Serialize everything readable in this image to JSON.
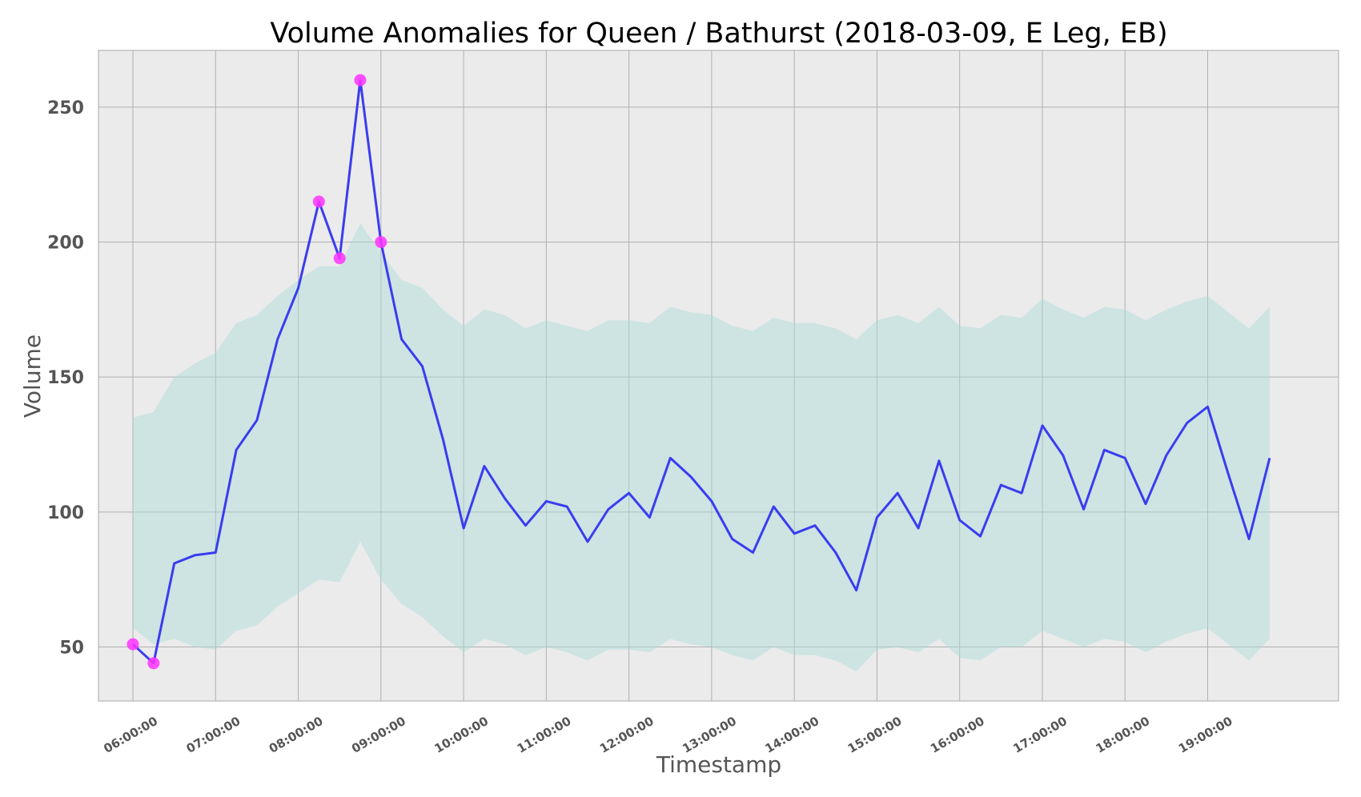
{
  "chart_data": {
    "type": "line",
    "title": "Volume Anomalies for Queen / Bathurst (2018-03-09, E Leg, EB)",
    "xlabel": "Timestamp",
    "ylabel": "Volume",
    "x_ticks": [
      "06:00:00",
      "07:00:00",
      "08:00:00",
      "09:00:00",
      "10:00:00",
      "11:00:00",
      "12:00:00",
      "13:00:00",
      "14:00:00",
      "15:00:00",
      "16:00:00",
      "17:00:00",
      "18:00:00",
      "19:00:00"
    ],
    "y_ticks": [
      "50",
      "100",
      "150",
      "200",
      "250"
    ],
    "x_range": [
      "05:35:00",
      "20:35:00"
    ],
    "ylim": [
      30,
      271
    ],
    "grid": true,
    "x": [
      "06:00",
      "06:15",
      "06:30",
      "06:45",
      "07:00",
      "07:15",
      "07:30",
      "07:45",
      "08:00",
      "08:15",
      "08:30",
      "08:45",
      "09:00",
      "09:15",
      "09:30",
      "09:45",
      "10:00",
      "10:15",
      "10:30",
      "10:45",
      "11:00",
      "11:15",
      "11:30",
      "11:45",
      "12:00",
      "12:15",
      "12:30",
      "12:45",
      "13:00",
      "13:15",
      "13:30",
      "13:45",
      "14:00",
      "14:15",
      "14:30",
      "14:45",
      "15:00",
      "15:15",
      "15:30",
      "15:45",
      "16:00",
      "16:15",
      "16:30",
      "16:45",
      "17:00",
      "17:15",
      "17:30",
      "17:45",
      "18:00",
      "18:15",
      "18:30",
      "18:45",
      "19:00",
      "19:15",
      "19:30",
      "19:45"
    ],
    "series": [
      {
        "values": [
          51,
          44,
          81,
          84,
          85,
          123,
          134,
          164,
          183,
          215,
          194,
          260,
          200,
          164,
          154,
          127,
          94,
          117,
          105,
          95,
          104,
          102,
          89,
          101,
          107,
          98,
          120,
          113,
          104,
          90,
          85,
          102,
          92,
          95,
          85,
          71,
          98,
          107,
          94,
          119,
          97,
          91,
          110,
          107,
          132,
          121,
          101,
          123,
          120,
          103,
          121,
          133,
          139,
          114,
          90,
          120
        ],
        "color": "#3a3cf0"
      }
    ],
    "band": {
      "upper": [
        135,
        137,
        150,
        155,
        159,
        170,
        173,
        180,
        186,
        191,
        191,
        207,
        196,
        186,
        183,
        175,
        169,
        175,
        173,
        168,
        171,
        169,
        167,
        171,
        171,
        170,
        176,
        174,
        173,
        169,
        167,
        172,
        170,
        170,
        168,
        164,
        171,
        173,
        170,
        176,
        169,
        168,
        173,
        172,
        179,
        175,
        172,
        176,
        175,
        171,
        175,
        178,
        180,
        174,
        168,
        176
      ],
      "lower": [
        57,
        51,
        53,
        50,
        49,
        56,
        58,
        65,
        70,
        75,
        74,
        89,
        75,
        66,
        61,
        54,
        48,
        53,
        51,
        47,
        50,
        48,
        45,
        49,
        49,
        48,
        53,
        51,
        50,
        47,
        45,
        50,
        47,
        47,
        45,
        41,
        49,
        50,
        48,
        53,
        46,
        45,
        50,
        50,
        56,
        53,
        50,
        53,
        52,
        48,
        52,
        55,
        57,
        51,
        45,
        53
      ],
      "color": "#a8dcd6"
    },
    "anomalies": {
      "x": [
        "06:00",
        "06:15",
        "08:15",
        "08:30",
        "08:45",
        "09:00"
      ],
      "values": [
        51,
        44,
        215,
        194,
        260,
        200
      ],
      "color": "#ff33ff"
    }
  }
}
